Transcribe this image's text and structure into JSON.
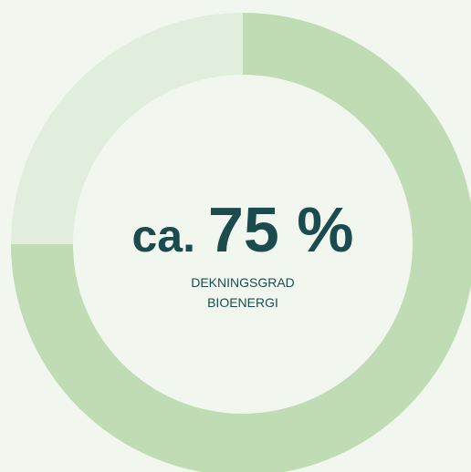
{
  "chart_data": {
    "type": "donut",
    "values": [
      75,
      25
    ],
    "colors": [
      "#bfdcb5",
      "#e2eedd"
    ],
    "center_prefix": "ca.",
    "value_labels": [
      "75 %",
      null
    ],
    "caption": [
      "DEKNINGSGRAD",
      "BIOENERGI"
    ]
  }
}
